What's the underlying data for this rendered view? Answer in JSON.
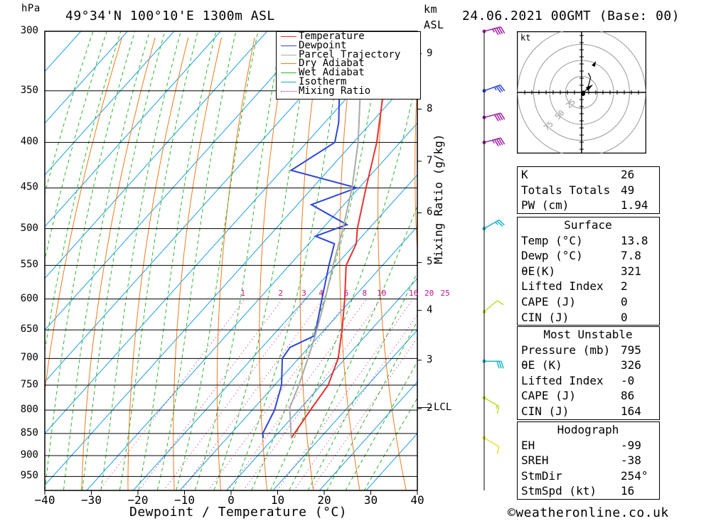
{
  "header": {
    "pressure_unit": "hPa",
    "location": "49°34'N 100°10'E 1300m ASL",
    "height_unit": "km",
    "height_unit2": "ASL",
    "datetime": "24.06.2021 00GMT (Base: 00)"
  },
  "footer": {
    "xlabel": "Dewpoint / Temperature (°C)",
    "ylabel_right": "Mixing Ratio (g/kg)",
    "copyright": "©weatheronline.co.uk"
  },
  "legend": [
    {
      "label": "Temperature",
      "color": "#e8312f",
      "style": "solid"
    },
    {
      "label": "Dewpoint",
      "color": "#2f46d6",
      "style": "solid"
    },
    {
      "label": "Parcel Trajectory",
      "color": "#a9a9a9",
      "style": "solid"
    },
    {
      "label": "Dry Adiabat",
      "color": "#f07a1a",
      "style": "solid"
    },
    {
      "label": "Wet Adiabat",
      "color": "#2db52d",
      "style": "solid"
    },
    {
      "label": "Isotherm",
      "color": "#1e9fe6",
      "style": "solid"
    },
    {
      "label": "Mixing Ratio",
      "color": "#c0138f",
      "style": "dotted"
    }
  ],
  "colors": {
    "temperature": "#e8312f",
    "dewpoint": "#2f46d6",
    "parcel": "#a9a9a9",
    "dry_adiabat": "#f07a1a",
    "wet_adiabat": "#2db52d",
    "isotherm": "#1e9fe6",
    "mixing_ratio": "#c0138f"
  },
  "chart_data": [
    {
      "type": "line",
      "subtype": "skew-T log-P",
      "title": "49°34'N 100°10'E 1300m ASL",
      "xlabel": "Dewpoint / Temperature (°C)",
      "ylabel": "hPa",
      "xlim": [
        -40,
        40
      ],
      "ylim": [
        985,
        300
      ],
      "y_scale": "log",
      "x_ticks": [
        -40,
        -30,
        -20,
        -10,
        0,
        10,
        20,
        30,
        40
      ],
      "pressure_levels": [
        300,
        350,
        400,
        450,
        500,
        550,
        600,
        650,
        700,
        750,
        800,
        850,
        900,
        950
      ],
      "height_km_ticks": [
        {
          "label": "9",
          "p": 318
        },
        {
          "label": "8",
          "p": 367
        },
        {
          "label": "7",
          "p": 420
        },
        {
          "label": "6",
          "p": 480
        },
        {
          "label": "5",
          "p": 546
        },
        {
          "label": "4",
          "p": 618
        },
        {
          "label": "3",
          "p": 703
        },
        {
          "label": "2",
          "p": 797
        }
      ],
      "lcl_label": "LCL",
      "lcl_p": 795,
      "mixing_ratio_labels": [
        1,
        2,
        3,
        4,
        6,
        8,
        10,
        16,
        20,
        25
      ],
      "grid": true,
      "legend_position": "top-right",
      "series": [
        {
          "name": "Temperature",
          "points": [
            [
              860,
              13.8
            ],
            [
              800,
              12.5
            ],
            [
              750,
              11.5
            ],
            [
              700,
              8.5
            ],
            [
              650,
              3.8
            ],
            [
              600,
              -1.6
            ],
            [
              550,
              -7.8
            ],
            [
              520,
              -9.8
            ],
            [
              500,
              -12.5
            ],
            [
              450,
              -18.5
            ],
            [
              400,
              -25.0
            ],
            [
              350,
              -33.5
            ],
            [
              300,
              -43.0
            ]
          ]
        },
        {
          "name": "Dewpoint",
          "points": [
            [
              860,
              7.8
            ],
            [
              850,
              6.8
            ],
            [
              800,
              4.8
            ],
            [
              750,
              1.5
            ],
            [
              700,
              -3.5
            ],
            [
              680,
              -4.0
            ],
            [
              660,
              -1.0
            ],
            [
              650,
              -1.8
            ],
            [
              600,
              -6.5
            ],
            [
              550,
              -11.5
            ],
            [
              520,
              -14.5
            ],
            [
              510,
              -20.0
            ],
            [
              495,
              -15.5
            ],
            [
              470,
              -27.0
            ],
            [
              450,
              -20.5
            ],
            [
              430,
              -38.0
            ],
            [
              400,
              -34.0
            ],
            [
              380,
              -37.0
            ],
            [
              350,
              -43.0
            ],
            [
              300,
              -53.0
            ]
          ]
        },
        {
          "name": "Parcel Trajectory",
          "points": [
            [
              860,
              13.8
            ],
            [
              795,
              7.6
            ],
            [
              750,
              5.2
            ],
            [
              700,
              2.0
            ],
            [
              650,
              -1.6
            ],
            [
              600,
              -5.8
            ],
            [
              550,
              -10.6
            ],
            [
              500,
              -15.6
            ],
            [
              450,
              -21.5
            ],
            [
              400,
              -29.0
            ],
            [
              350,
              -38.5
            ],
            [
              310,
              -47.5
            ]
          ]
        }
      ]
    },
    {
      "type": "scatter",
      "subtype": "hodograph",
      "unit_label": "kt",
      "ring_labels": [
        "25",
        "50",
        "75"
      ],
      "series": [
        {
          "name": "hodograph",
          "points": [
            [
              -0.5,
              -0.5
            ],
            [
              2,
              2
            ],
            [
              4,
              1
            ],
            [
              6,
              3
            ],
            [
              8,
              6
            ],
            [
              10,
              12
            ],
            [
              12,
              20
            ],
            [
              9,
              26
            ]
          ]
        }
      ]
    }
  ],
  "wind_profile": [
    {
      "p": 300,
      "speed_kt": 45,
      "dir": 255,
      "color": "#9c1ea1"
    },
    {
      "p": 350,
      "speed_kt": 35,
      "dir": 250,
      "color": "#2f46d6"
    },
    {
      "p": 375,
      "speed_kt": 40,
      "dir": 255,
      "color": "#9c1ea1"
    },
    {
      "p": 400,
      "speed_kt": 45,
      "dir": 255,
      "color": "#9c1ea1"
    },
    {
      "p": 500,
      "speed_kt": 25,
      "dir": 240,
      "color": "#1fb5c4"
    },
    {
      "p": 620,
      "speed_kt": 10,
      "dir": 230,
      "color": "#b8e02a"
    },
    {
      "p": 705,
      "speed_kt": 30,
      "dir": 270,
      "color": "#1fb5c4"
    },
    {
      "p": 775,
      "speed_kt": 15,
      "dir": 300,
      "color": "#b8e02a"
    },
    {
      "p": 860,
      "speed_kt": 10,
      "dir": 300,
      "color": "#e8e02a"
    }
  ],
  "indices": {
    "general": [
      {
        "k": "K",
        "v": "26"
      },
      {
        "k": "Totals Totals",
        "v": "49"
      },
      {
        "k": "PW (cm)",
        "v": "1.94"
      }
    ],
    "surface": {
      "title": "Surface",
      "rows": [
        {
          "k": "Temp (°C)",
          "v": "13.8"
        },
        {
          "k": "Dewp (°C)",
          "v": "7.8"
        },
        {
          "k": "θE(K)",
          "v": "321"
        },
        {
          "k": "Lifted Index",
          "v": "2"
        },
        {
          "k": "CAPE (J)",
          "v": "0"
        },
        {
          "k": "CIN (J)",
          "v": "0"
        }
      ]
    },
    "most_unstable": {
      "title": "Most Unstable",
      "rows": [
        {
          "k": "Pressure (mb)",
          "v": "795"
        },
        {
          "k": "θE (K)",
          "v": "326"
        },
        {
          "k": "Lifted Index",
          "v": "-0"
        },
        {
          "k": "CAPE (J)",
          "v": "86"
        },
        {
          "k": "CIN (J)",
          "v": "164"
        }
      ]
    },
    "hodograph": {
      "title": "Hodograph",
      "rows": [
        {
          "k": "EH",
          "v": "-99"
        },
        {
          "k": "SREH",
          "v": "-38"
        },
        {
          "k": "StmDir",
          "v": "254°"
        },
        {
          "k": "StmSpd (kt)",
          "v": "16"
        }
      ]
    }
  }
}
